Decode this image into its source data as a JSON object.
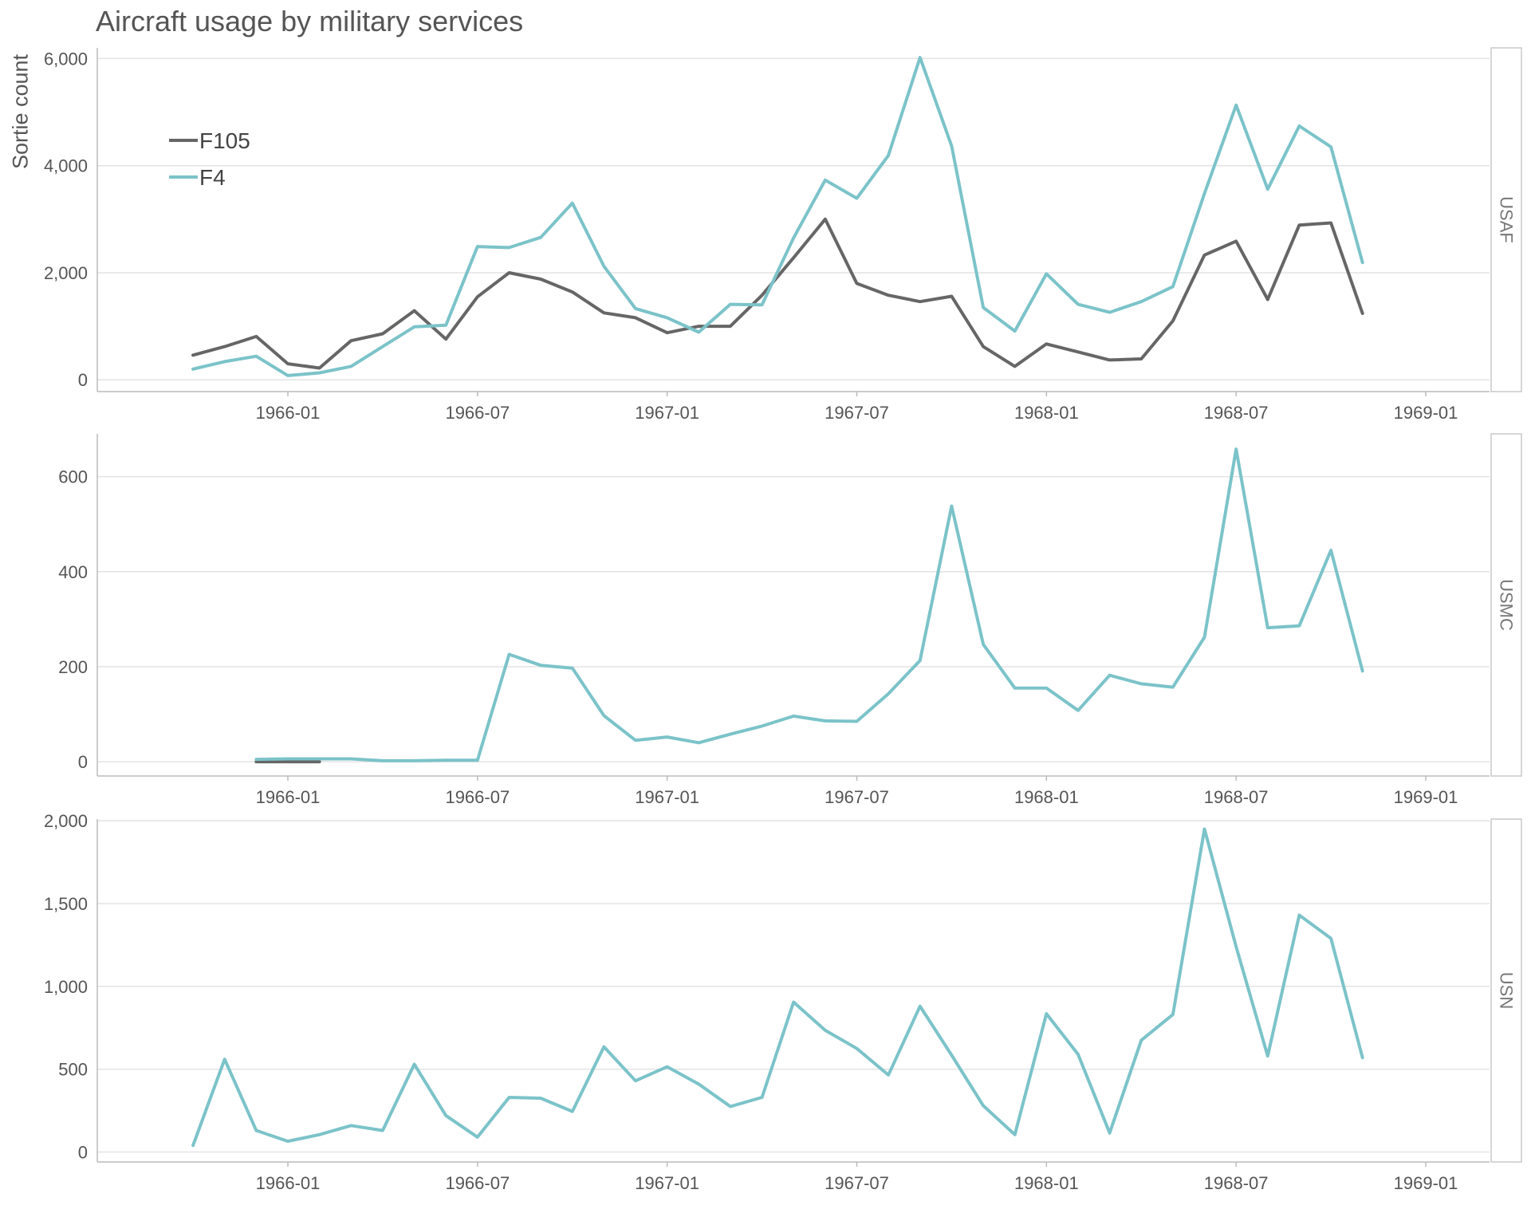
{
  "chart_data": {
    "type": "line",
    "title": "Aircraft usage by military services",
    "ylabel": "Sortie count",
    "xlabel": "",
    "x_ticks": [
      "1966-01",
      "1966-07",
      "1967-01",
      "1967-07",
      "1968-01",
      "1968-07",
      "1969-01"
    ],
    "legend": {
      "placement": "top-left",
      "entries": [
        "F105",
        "F4"
      ]
    },
    "colors": {
      "F105": "#666666",
      "F4": "#7bc3c9"
    },
    "grid": true,
    "x": [
      "1965-10",
      "1965-11",
      "1965-12",
      "1966-01",
      "1966-02",
      "1966-03",
      "1966-04",
      "1966-05",
      "1966-06",
      "1966-07",
      "1966-08",
      "1966-09",
      "1966-10",
      "1966-11",
      "1966-12",
      "1967-01",
      "1967-02",
      "1967-03",
      "1967-04",
      "1967-05",
      "1967-06",
      "1967-07",
      "1967-08",
      "1967-09",
      "1967-10",
      "1967-11",
      "1967-12",
      "1968-01",
      "1968-02",
      "1968-03",
      "1968-04",
      "1968-05",
      "1968-06",
      "1968-07",
      "1968-08",
      "1968-09",
      "1968-10",
      "1968-11"
    ],
    "panels": [
      {
        "facet": "USAF",
        "ylim": [
          -220,
          6200
        ],
        "yticks": [
          0,
          2000,
          4000,
          6000
        ],
        "ytick_labels": [
          "0",
          "2,000",
          "4,000",
          "6,000"
        ],
        "series": [
          {
            "name": "F105",
            "start": "1965-10",
            "values": [
              460,
              620,
              810,
              300,
              220,
              730,
              860,
              1290,
              760,
              1550,
              2000,
              1880,
              1640,
              1250,
              1160,
              880,
              1000,
              1000,
              1580,
              2280,
              3000,
              1800,
              1580,
              1460,
              1560,
              620,
              250,
              670,
              520,
              370,
              390,
              1100,
              2330,
              2590,
              1500,
              2890,
              2930,
              1240
            ]
          },
          {
            "name": "F4",
            "start": "1965-10",
            "values": [
              200,
              340,
              440,
              80,
              130,
              250,
              620,
              990,
              1020,
              2490,
              2470,
              2660,
              3300,
              2120,
              1330,
              1160,
              890,
              1410,
              1400,
              2650,
              3730,
              3390,
              4190,
              6020,
              4370,
              1350,
              910,
              1980,
              1410,
              1260,
              1460,
              1740,
              3480,
              5130,
              3560,
              4740,
              4350,
              2190
            ]
          }
        ]
      },
      {
        "facet": "USMC",
        "ylim": [
          -30,
          690
        ],
        "yticks": [
          0,
          200,
          400,
          600
        ],
        "ytick_labels": [
          "0",
          "200",
          "400",
          "600"
        ],
        "series": [
          {
            "name": "F105",
            "start": "1965-12",
            "values": [
              0,
              0,
              0
            ]
          },
          {
            "name": "F4",
            "start": "1965-12",
            "values": [
              5,
              6,
              6,
              6,
              2,
              2,
              3,
              3,
              226,
              203,
              197,
              97,
              45,
              52,
              40,
              58,
              75,
              96,
              86,
              85,
              143,
              213,
              538,
              247,
              155,
              155,
              108,
              182,
              164,
              157,
              262,
              658,
              282,
              286,
              445,
              191
            ]
          }
        ]
      },
      {
        "facet": "USN",
        "ylim": [
          -60,
          2010
        ],
        "yticks": [
          0,
          500,
          1000,
          1500,
          2000
        ],
        "ytick_labels": [
          "0",
          "500",
          "1,000",
          "1,500",
          "2,000"
        ],
        "series": [
          {
            "name": "F4",
            "start": "1965-10",
            "values": [
              40,
              560,
              130,
              65,
              105,
              160,
              130,
              530,
              220,
              90,
              330,
              325,
              245,
              635,
              430,
              515,
              410,
              275,
              330,
              905,
              735,
              625,
              465,
              880,
              585,
              280,
              105,
              835,
              590,
              115,
              675,
              830,
              1950,
              1240,
              580,
              1430,
              1290,
              570
            ]
          }
        ]
      }
    ]
  }
}
